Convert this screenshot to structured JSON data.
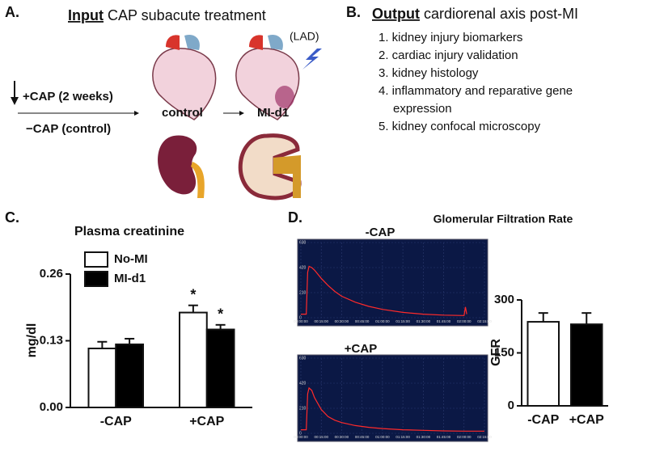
{
  "panel_a": {
    "label": "A.",
    "title_bold": "Input",
    "title_rest": "CAP subacute treatment",
    "lad": "(LAD)",
    "plus_cap": "+CAP (2 weeks)",
    "minus_cap": "−CAP (control)",
    "control": "control",
    "mi": "MI-d1"
  },
  "panel_b": {
    "label": "B.",
    "title_bold": "Output",
    "title_rest": "cardiorenal axis post-MI",
    "items": [
      "1. kidney injury biomarkers",
      "2. cardiac injury validation",
      "3. kidney histology",
      "4. inflammatory and reparative gene expression",
      "5. kidney confocal microscopy"
    ]
  },
  "panel_c": {
    "label": "C."
  },
  "panel_d": {
    "label": "D.",
    "title": "Glomerular Filtration Rate"
  },
  "chart_data": [
    {
      "type": "bar",
      "title": "Plasma creatinine",
      "y_label": "mg/dl",
      "categories": [
        "-CAP",
        "+CAP"
      ],
      "series": [
        {
          "name": "No-MI",
          "color": "#ffffff",
          "values": [
            0.115,
            0.185
          ],
          "errors": [
            0.013,
            0.014
          ]
        },
        {
          "name": "MI-d1",
          "color": "#000000",
          "values": [
            0.123,
            0.152
          ],
          "errors": [
            0.011,
            0.009
          ]
        }
      ],
      "annotations": [
        {
          "text": "*",
          "series": 0,
          "category": 1
        },
        {
          "text": "*",
          "series": 1,
          "category": 1
        }
      ],
      "ylim": [
        0,
        0.26
      ],
      "yticks": [
        {
          "value": 0,
          "label": "0.00"
        },
        {
          "value": 0.13,
          "label": "0.13"
        },
        {
          "value": 0.26,
          "label": "0.26"
        }
      ],
      "legend": "upper left"
    },
    {
      "type": "line",
      "title": "-CAP",
      "background": "#0b1845",
      "x": [
        0,
        4,
        5,
        6,
        8,
        10,
        15,
        20,
        25,
        30,
        40,
        50,
        60,
        75,
        90,
        105,
        120,
        121,
        122
      ],
      "series": [
        {
          "color": "#ff2a2a",
          "values": [
            30,
            30,
            380,
            430,
            420,
            400,
            330,
            270,
            220,
            180,
            130,
            95,
            70,
            45,
            30,
            22,
            18,
            90,
            30
          ]
        }
      ],
      "xlim": [
        0,
        135
      ],
      "xticks": [
        {
          "value": 0,
          "label": "00:00:00"
        },
        {
          "value": 15,
          "label": "00:15:00"
        },
        {
          "value": 30,
          "label": "00:30:00"
        },
        {
          "value": 45,
          "label": "00:45:00"
        },
        {
          "value": 60,
          "label": "01:00:00"
        },
        {
          "value": 75,
          "label": "01:15:00"
        },
        {
          "value": 90,
          "label": "01:30:00"
        },
        {
          "value": 105,
          "label": "01:45:00"
        },
        {
          "value": 120,
          "label": "02:00:00"
        },
        {
          "value": 135,
          "label": "02:15:00"
        }
      ],
      "ylim": [
        0,
        630
      ],
      "yticks": [
        0,
        210,
        420,
        630
      ]
    },
    {
      "type": "line",
      "title": "+CAP",
      "background": "#0b1845",
      "x": [
        0,
        4,
        5,
        6,
        8,
        10,
        15,
        20,
        25,
        30,
        40,
        50,
        60,
        75,
        90,
        105,
        120,
        128,
        135
      ],
      "series": [
        {
          "color": "#ff2a2a",
          "values": [
            30,
            30,
            330,
            380,
            360,
            300,
            200,
            140,
            110,
            90,
            65,
            50,
            40,
            30,
            25,
            20,
            18,
            18,
            18
          ]
        }
      ],
      "xlim": [
        0,
        135
      ],
      "xticks": [
        {
          "value": 0,
          "label": "00:00:00"
        },
        {
          "value": 15,
          "label": "00:15:00"
        },
        {
          "value": 30,
          "label": "00:30:00"
        },
        {
          "value": 45,
          "label": "00:45:00"
        },
        {
          "value": 60,
          "label": "01:00:00"
        },
        {
          "value": 75,
          "label": "01:15:00"
        },
        {
          "value": 90,
          "label": "01:30:00"
        },
        {
          "value": 105,
          "label": "01:45:00"
        },
        {
          "value": 120,
          "label": "02:00:00"
        },
        {
          "value": 135,
          "label": "02:15:00"
        }
      ],
      "ylim": [
        0,
        630
      ],
      "yticks": [
        0,
        210,
        420,
        630
      ]
    },
    {
      "type": "bar",
      "y_label": "GFR",
      "categories": [
        "-CAP",
        "+CAP"
      ],
      "values": [
        238,
        231
      ],
      "errors": [
        25,
        32
      ],
      "colors": [
        "#ffffff",
        "#000000"
      ],
      "ylim": [
        0,
        300
      ],
      "yticks": [
        0,
        150,
        300
      ]
    }
  ]
}
